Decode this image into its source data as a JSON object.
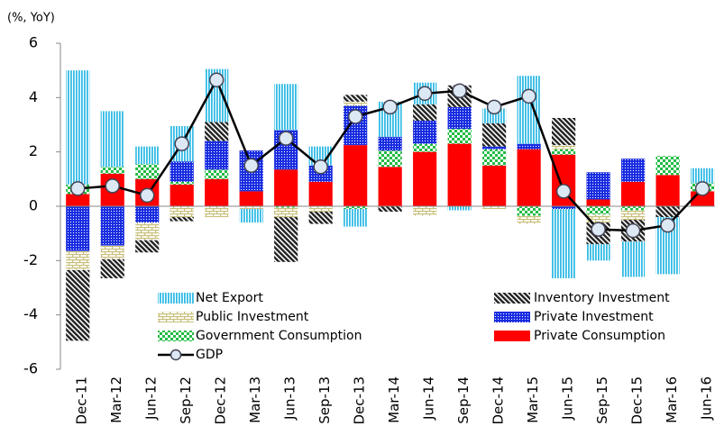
{
  "chart_data": {
    "type": "bar",
    "stacked": true,
    "y_label": "(%, YoY)",
    "categories": [
      "Dec-11",
      "Mar-12",
      "Jun-12",
      "Sep-12",
      "Dec-12",
      "Mar-13",
      "Jun-13",
      "Sep-13",
      "Dec-13",
      "Mar-14",
      "Jun-14",
      "Sep-14",
      "Dec-14",
      "Mar-15",
      "Jun-15",
      "Sep-15",
      "Dec-15",
      "Mar-16",
      "Jun-16"
    ],
    "series": [
      {
        "name": "Private Consumption",
        "color": "#ff0000",
        "values": [
          0.45,
          1.2,
          1.0,
          0.8,
          1.0,
          0.55,
          1.35,
          0.9,
          2.25,
          1.45,
          2.0,
          2.3,
          1.5,
          2.1,
          1.9,
          0.25,
          0.9,
          1.15,
          0.55
        ]
      },
      {
        "name": "Government Consumption",
        "color": "#22bb44",
        "values": [
          0.35,
          0.25,
          0.55,
          0.1,
          0.35,
          0,
          -0.05,
          0,
          -0.1,
          0.6,
          0.3,
          0.55,
          0.6,
          -0.35,
          0.2,
          -0.3,
          -0.15,
          0.7,
          0.3
        ]
      },
      {
        "name": "Private Investment",
        "color": "#1a2ee0",
        "values": [
          -1.65,
          -1.45,
          -0.6,
          0.75,
          1.05,
          1.5,
          1.45,
          0.6,
          1.45,
          0.5,
          0.85,
          0.8,
          0.1,
          0.2,
          -0.1,
          1.0,
          0.85,
          0,
          0
        ]
      },
      {
        "name": "Public Investment",
        "color": "#c8bf7a",
        "values": [
          -0.7,
          -0.5,
          -0.65,
          -0.4,
          -0.4,
          -0.1,
          -0.35,
          -0.2,
          0.15,
          0,
          -0.35,
          0,
          -0.1,
          -0.3,
          0.15,
          -0.3,
          -0.35,
          0,
          0
        ]
      },
      {
        "name": "Inventory Investment",
        "color": "#222222",
        "values": [
          -2.6,
          -0.7,
          -0.45,
          -0.15,
          0.7,
          0,
          -1.65,
          -0.45,
          0.25,
          -0.2,
          0.6,
          0.8,
          0.85,
          0,
          1.0,
          -0.8,
          -0.8,
          -0.4,
          0
        ]
      },
      {
        "name": "Net Export",
        "color": "#33bbe6",
        "values": [
          4.2,
          2.05,
          0.65,
          1.3,
          1.95,
          -0.5,
          1.7,
          0.7,
          -0.65,
          1.3,
          0.8,
          -0.15,
          0.55,
          2.5,
          -2.55,
          -0.6,
          -1.3,
          -2.1,
          0.55
        ]
      }
    ],
    "line_series": {
      "name": "GDP",
      "color": "#000000",
      "values": [
        0.65,
        0.75,
        0.4,
        2.3,
        4.65,
        1.5,
        2.5,
        1.45,
        3.3,
        3.65,
        4.15,
        4.25,
        3.65,
        4.05,
        0.55,
        -0.85,
        -0.9,
        -0.7,
        0.65
      ]
    },
    "ylim": [
      -6,
      6
    ],
    "yticks": [
      -6,
      -4,
      -2,
      0,
      2,
      4,
      6
    ]
  }
}
